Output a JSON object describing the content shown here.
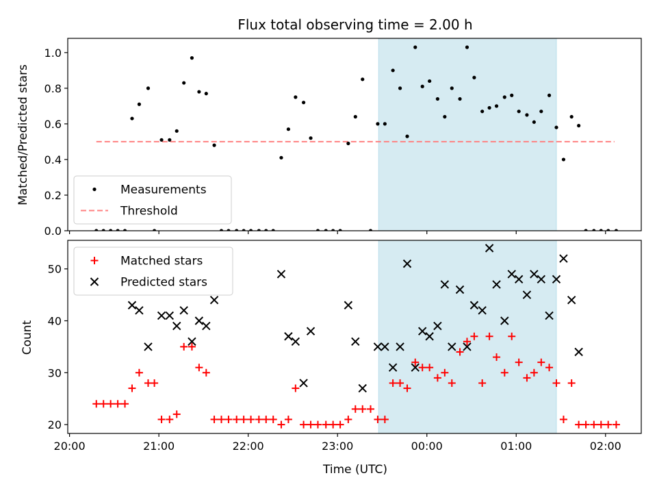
{
  "chart_data": [
    {
      "type": "scatter",
      "title": "Flux total observing time = 2.00 h",
      "xlabel": "",
      "ylabel": "Matched/Predicted stars",
      "ylim": [
        0,
        1.08
      ],
      "y_ticks": [
        "0.0",
        "0.2",
        "0.4",
        "0.6",
        "0.8",
        "1.0"
      ],
      "x_ticks_hours": [
        20,
        21,
        22,
        23,
        24,
        25,
        26
      ],
      "show_x_tick_labels": false,
      "legend_position": "lower-left",
      "highlight_span": {
        "from_hour": 23.46,
        "to_hour": 25.45,
        "color": "#add8e6"
      },
      "threshold": {
        "name": "Threshold",
        "value": 0.5,
        "x_from_hour": 20.3,
        "x_to_hour": 26.1,
        "color": "#ff7f7f",
        "style": "dashed"
      },
      "series": [
        {
          "name": "Measurements",
          "marker": "point",
          "color": "#000000",
          "x_hours": [
            20.3,
            20.38,
            20.46,
            20.54,
            20.62,
            20.7,
            20.78,
            20.88,
            20.95,
            21.03,
            21.12,
            21.2,
            21.28,
            21.37,
            21.45,
            21.53,
            21.62,
            21.7,
            21.78,
            21.87,
            21.95,
            22.03,
            22.12,
            22.2,
            22.28,
            22.37,
            22.45,
            22.53,
            22.62,
            22.7,
            22.78,
            22.87,
            22.95,
            23.03,
            23.12,
            23.2,
            23.28,
            23.37,
            23.45,
            23.53,
            23.62,
            23.7,
            23.78,
            23.87,
            23.95,
            24.03,
            24.12,
            24.2,
            24.28,
            24.37,
            24.45,
            24.53,
            24.62,
            24.7,
            24.78,
            24.87,
            24.95,
            25.03,
            25.12,
            25.2,
            25.28,
            25.37,
            25.45,
            25.53,
            25.62,
            25.7,
            25.78,
            25.87,
            25.95,
            26.03,
            26.12
          ],
          "values": [
            0.0,
            0.0,
            0.0,
            0.0,
            0.0,
            0.63,
            0.71,
            0.8,
            0.0,
            0.51,
            0.51,
            0.56,
            0.83,
            0.97,
            0.78,
            0.77,
            0.48,
            0.0,
            0.0,
            0.0,
            0.0,
            0.0,
            0.0,
            0.0,
            0.0,
            0.41,
            0.57,
            0.75,
            0.72,
            0.52,
            0.0,
            0.0,
            0.0,
            0.0,
            0.49,
            0.64,
            0.85,
            0.0,
            0.6,
            0.6,
            0.9,
            0.8,
            0.53,
            1.03,
            0.81,
            0.84,
            0.74,
            0.64,
            0.8,
            0.74,
            1.03,
            0.86,
            0.67,
            0.69,
            0.7,
            0.75,
            0.76,
            0.67,
            0.65,
            0.61,
            0.67,
            0.76,
            0.58,
            0.4,
            0.64,
            0.59,
            0.0,
            0.0,
            0.0,
            0.0,
            0.0
          ]
        }
      ]
    },
    {
      "type": "scatter",
      "title": "",
      "xlabel": "Time (UTC)",
      "ylabel": "Count",
      "ylim": [
        18.3,
        55.5
      ],
      "y_ticks": [
        "20",
        "30",
        "40",
        "50"
      ],
      "y_tick_values": [
        20,
        30,
        40,
        50
      ],
      "x_ticks_hours": [
        20,
        21,
        22,
        23,
        24,
        25,
        26
      ],
      "x_tick_labels": [
        "20:00",
        "21:00",
        "22:00",
        "23:00",
        "00:00",
        "01:00",
        "02:00"
      ],
      "legend_position": "upper-left",
      "highlight_span": {
        "from_hour": 23.46,
        "to_hour": 25.45,
        "color": "#add8e6"
      },
      "series": [
        {
          "name": "Matched stars",
          "marker": "plus",
          "color": "#ff0000",
          "x_hours": [
            20.3,
            20.38,
            20.46,
            20.54,
            20.62,
            20.7,
            20.78,
            20.88,
            20.95,
            21.03,
            21.12,
            21.2,
            21.28,
            21.37,
            21.45,
            21.53,
            21.62,
            21.7,
            21.78,
            21.87,
            21.95,
            22.03,
            22.12,
            22.2,
            22.28,
            22.37,
            22.45,
            22.53,
            22.62,
            22.7,
            22.78,
            22.87,
            22.95,
            23.03,
            23.12,
            23.2,
            23.28,
            23.37,
            23.45,
            23.53,
            23.62,
            23.7,
            23.78,
            23.87,
            23.95,
            24.03,
            24.12,
            24.2,
            24.28,
            24.37,
            24.45,
            24.53,
            24.62,
            24.7,
            24.78,
            24.87,
            24.95,
            25.03,
            25.12,
            25.2,
            25.28,
            25.37,
            25.45,
            25.53,
            25.62,
            25.7,
            25.78,
            25.87,
            25.95,
            26.03,
            26.12
          ],
          "values": [
            24,
            24,
            24,
            24,
            24,
            27,
            30,
            28,
            28,
            21,
            21,
            22,
            35,
            35,
            31,
            30,
            21,
            21,
            21,
            21,
            21,
            21,
            21,
            21,
            21,
            20,
            21,
            27,
            20,
            20,
            20,
            20,
            20,
            20,
            21,
            23,
            23,
            23,
            21,
            21,
            28,
            28,
            27,
            32,
            31,
            31,
            29,
            30,
            28,
            34,
            36,
            37,
            28,
            37,
            33,
            30,
            37,
            32,
            29,
            30,
            32,
            31,
            28,
            21,
            28,
            20,
            20,
            20,
            20,
            20,
            20
          ]
        },
        {
          "name": "Predicted stars",
          "marker": "x",
          "color": "#000000",
          "x_hours": [
            20.7,
            20.78,
            20.88,
            21.03,
            21.12,
            21.2,
            21.28,
            21.37,
            21.45,
            21.53,
            21.62,
            22.37,
            22.45,
            22.53,
            22.62,
            22.7,
            23.12,
            23.2,
            23.28,
            23.45,
            23.53,
            23.62,
            23.7,
            23.78,
            23.87,
            23.95,
            24.03,
            24.12,
            24.2,
            24.28,
            24.37,
            24.45,
            24.53,
            24.62,
            24.7,
            24.78,
            24.87,
            24.95,
            25.03,
            25.12,
            25.2,
            25.28,
            25.37,
            25.45,
            25.53,
            25.62,
            25.7
          ],
          "values": [
            43,
            42,
            35,
            41,
            41,
            39,
            42,
            36,
            40,
            39,
            44,
            49,
            37,
            36,
            28,
            38,
            43,
            36,
            27,
            35,
            35,
            31,
            35,
            51,
            31,
            38,
            37,
            39,
            47,
            35,
            46,
            35,
            43,
            42,
            54,
            47,
            40,
            49,
            48,
            45,
            49,
            48,
            41,
            48,
            52,
            44,
            34
          ]
        }
      ]
    }
  ]
}
